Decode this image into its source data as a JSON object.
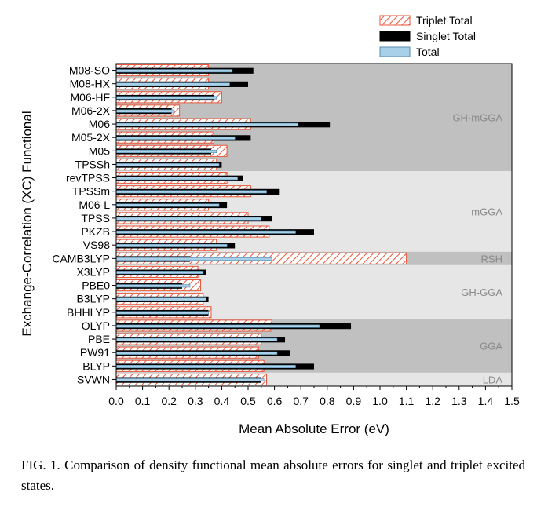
{
  "chart_data": {
    "type": "bar",
    "orientation": "horizontal",
    "xlabel": "Mean Absolute Error (eV)",
    "ylabel": "Exchange-Correlation (XC) Functional",
    "xlim": [
      0.0,
      1.5
    ],
    "x_ticks": [
      "0.0",
      "0.1",
      "0.2",
      "0.3",
      "0.4",
      "0.5",
      "0.6",
      "0.7",
      "0.8",
      "0.9",
      "1.0",
      "1.1",
      "1.2",
      "1.3",
      "1.4",
      "1.5"
    ],
    "categories": [
      "M08-SO",
      "M08-HX",
      "M06-HF",
      "M06-2X",
      "M06",
      "M05-2X",
      "M05",
      "TPSSh",
      "revTPSS",
      "TPSSm",
      "M06-L",
      "TPSS",
      "PKZB",
      "VS98",
      "CAMB3LYP",
      "X3LYP",
      "PBE0",
      "B3LYP",
      "BHHLYP",
      "OLYP",
      "PBE",
      "PW91",
      "BLYP",
      "SVWN"
    ],
    "series": [
      {
        "name": "Triplet Total",
        "color": "#e8573a",
        "values": [
          0.35,
          0.35,
          0.4,
          0.24,
          0.51,
          0.37,
          0.42,
          0.38,
          0.42,
          0.51,
          0.35,
          0.5,
          0.58,
          0.38,
          1.1,
          0.31,
          0.32,
          0.33,
          0.36,
          0.59,
          0.55,
          0.54,
          0.56,
          0.57
        ]
      },
      {
        "name": "Singlet Total",
        "color": "#000000",
        "values": [
          0.52,
          0.5,
          0.37,
          0.21,
          0.81,
          0.51,
          0.36,
          0.4,
          0.48,
          0.62,
          0.42,
          0.59,
          0.75,
          0.45,
          0.28,
          0.34,
          0.25,
          0.35,
          0.35,
          0.89,
          0.64,
          0.66,
          0.75,
          0.55
        ]
      },
      {
        "name": "Total",
        "color": "#a8d0e8",
        "values": [
          0.44,
          0.43,
          0.38,
          0.22,
          0.69,
          0.45,
          0.38,
          0.39,
          0.46,
          0.57,
          0.39,
          0.55,
          0.68,
          0.42,
          0.59,
          0.33,
          0.28,
          0.34,
          0.35,
          0.77,
          0.61,
          0.61,
          0.68,
          0.56
        ]
      }
    ],
    "groups": [
      {
        "label": "GH-mGGA",
        "from": 0,
        "to": 7,
        "shade": "#c0c0c0"
      },
      {
        "label": "mGGA",
        "from": 8,
        "to": 13,
        "shade": "#e6e6e6"
      },
      {
        "label": "RSH",
        "from": 14,
        "to": 14,
        "shade": "#c0c0c0"
      },
      {
        "label": "GH-GGA",
        "from": 15,
        "to": 18,
        "shade": "#e6e6e6"
      },
      {
        "label": "GGA",
        "from": 19,
        "to": 22,
        "shade": "#c0c0c0"
      },
      {
        "label": "LDA",
        "from": 23,
        "to": 23,
        "shade": "#e6e6e6"
      }
    ],
    "legend_position": "top-right"
  },
  "caption": {
    "text": "FIG. 1. Comparison of density functional mean absolute errors for singlet and triplet excited states."
  }
}
